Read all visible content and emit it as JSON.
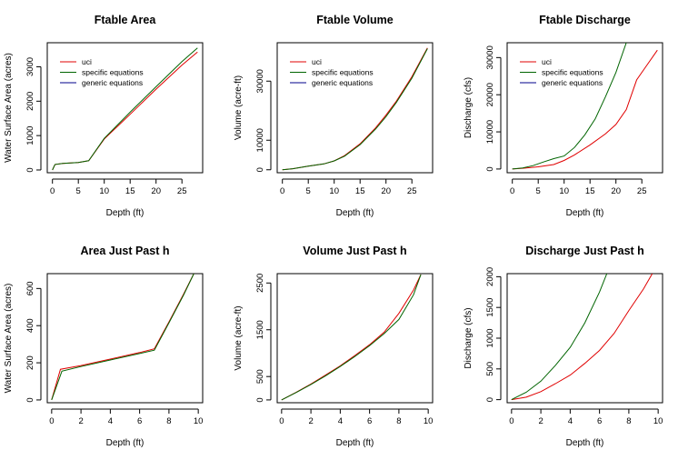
{
  "colors": {
    "uci": "#e00000",
    "specific": "#006400",
    "generic": "#00008b",
    "axis": "#000000",
    "background": "#ffffff"
  },
  "chart_data": [
    {
      "type": "line",
      "title": "Ftable Area",
      "xlabel": "Depth (ft)",
      "ylabel": "Water Surface Area (acres)",
      "xlim": [
        -1,
        29
      ],
      "ylim": [
        -80,
        3700
      ],
      "xticks": [
        0,
        5,
        10,
        15,
        20,
        25
      ],
      "yticks": [
        0,
        1000,
        2000,
        3000
      ],
      "legend": {
        "position": "top-left",
        "entries": [
          "uci",
          "specific equations",
          "generic equations"
        ]
      },
      "series": [
        {
          "name": "uci",
          "color_key": "uci",
          "x": [
            0,
            0.5,
            2,
            5,
            7,
            10,
            15,
            20,
            25,
            28
          ],
          "y": [
            0,
            160,
            190,
            220,
            270,
            900,
            1620,
            2350,
            3050,
            3430
          ]
        },
        {
          "name": "specific equations",
          "color_key": "specific",
          "x": [
            0,
            0.5,
            2,
            5,
            7,
            10,
            15,
            20,
            25,
            28
          ],
          "y": [
            0,
            160,
            190,
            220,
            270,
            920,
            1680,
            2420,
            3150,
            3550
          ]
        }
      ]
    },
    {
      "type": "line",
      "title": "Ftable Volume",
      "xlabel": "Depth (ft)",
      "ylabel": "Volume (acre-ft)",
      "xlim": [
        -1,
        29
      ],
      "ylim": [
        -1000,
        43000
      ],
      "xticks": [
        0,
        5,
        10,
        15,
        20,
        25
      ],
      "yticks": [
        0,
        10000,
        30000
      ],
      "legend": {
        "position": "top-left",
        "entries": [
          "uci",
          "specific equations",
          "generic equations"
        ]
      },
      "series": [
        {
          "name": "uci",
          "color_key": "uci",
          "x": [
            0,
            2,
            5,
            8,
            10,
            12,
            15,
            18,
            20,
            22,
            25,
            28
          ],
          "y": [
            0,
            350,
            1200,
            2000,
            3000,
            4800,
            8800,
            14200,
            18500,
            23200,
            31500,
            41200
          ]
        },
        {
          "name": "specific equations",
          "color_key": "specific",
          "x": [
            0,
            2,
            5,
            8,
            10,
            12,
            15,
            18,
            20,
            22,
            25,
            28
          ],
          "y": [
            0,
            350,
            1200,
            2000,
            3000,
            4600,
            8500,
            13800,
            18000,
            22800,
            31000,
            41000
          ]
        }
      ]
    },
    {
      "type": "line",
      "title": "Ftable Discharge",
      "xlabel": "Depth (ft)",
      "ylabel": "Discharge (cfs)",
      "xlim": [
        -1,
        29
      ],
      "ylim": [
        -1000,
        34000
      ],
      "xticks": [
        0,
        5,
        10,
        15,
        20,
        25
      ],
      "yticks": [
        0,
        10000,
        20000,
        30000
      ],
      "legend": {
        "position": "top-left",
        "entries": [
          "uci",
          "specific equations",
          "generic equations"
        ]
      },
      "series": [
        {
          "name": "uci",
          "color_key": "uci",
          "x": [
            0,
            2,
            5,
            8,
            10,
            12,
            15,
            18,
            20,
            22,
            24,
            26,
            28
          ],
          "y": [
            0,
            200,
            600,
            1200,
            2300,
            3800,
            6500,
            9500,
            12000,
            16000,
            24000,
            28000,
            32000
          ]
        },
        {
          "name": "specific equations",
          "color_key": "specific",
          "x": [
            0,
            2,
            4,
            6,
            8,
            10,
            12,
            14,
            16,
            18,
            20,
            22
          ],
          "y": [
            0,
            300,
            900,
            1900,
            2800,
            3500,
            5800,
            9200,
            13500,
            19500,
            26000,
            34000
          ]
        }
      ]
    },
    {
      "type": "line",
      "title": "Area Just Past h",
      "xlabel": "Depth (ft)",
      "ylabel": "Water Surface Area (acres)",
      "xlim": [
        -0.3,
        10.3
      ],
      "ylim": [
        -15,
        680
      ],
      "xticks": [
        0,
        2,
        4,
        6,
        8,
        10
      ],
      "yticks": [
        0,
        200,
        400,
        600
      ],
      "series": [
        {
          "name": "uci",
          "color_key": "uci",
          "x": [
            0,
            0.6,
            2,
            4,
            6,
            7,
            8,
            9,
            9.7
          ],
          "y": [
            0,
            165,
            185,
            220,
            255,
            275,
            420,
            570,
            680
          ]
        },
        {
          "name": "specific equations",
          "color_key": "specific",
          "x": [
            0,
            0.7,
            2,
            4,
            6,
            7,
            8,
            9,
            9.7
          ],
          "y": [
            0,
            155,
            180,
            215,
            250,
            268,
            415,
            565,
            680
          ]
        }
      ]
    },
    {
      "type": "line",
      "title": "Volume Just Past h",
      "xlabel": "Depth (ft)",
      "ylabel": "Volume (acre-ft)",
      "xlim": [
        -0.3,
        10.3
      ],
      "ylim": [
        -60,
        2700
      ],
      "xticks": [
        0,
        2,
        4,
        6,
        8,
        10
      ],
      "yticks": [
        0,
        500,
        1500,
        2500
      ],
      "series": [
        {
          "name": "uci",
          "color_key": "uci",
          "x": [
            0,
            1,
            2,
            3,
            4,
            5,
            6,
            7,
            8,
            9,
            9.5
          ],
          "y": [
            0,
            165,
            340,
            530,
            730,
            950,
            1180,
            1450,
            1850,
            2350,
            2680
          ]
        },
        {
          "name": "specific equations",
          "color_key": "specific",
          "x": [
            0,
            1,
            2,
            3,
            4,
            5,
            6,
            7,
            8,
            9,
            9.5
          ],
          "y": [
            0,
            160,
            330,
            515,
            715,
            930,
            1160,
            1420,
            1720,
            2250,
            2680
          ]
        }
      ]
    },
    {
      "type": "line",
      "title": "Discharge Just Past h",
      "xlabel": "Depth (ft)",
      "ylabel": "Discharge (cfs)",
      "xlim": [
        -0.3,
        10.3
      ],
      "ylim": [
        -50,
        2050
      ],
      "xticks": [
        0,
        2,
        4,
        6,
        8,
        10
      ],
      "yticks": [
        0,
        500,
        1000,
        1500,
        2000
      ],
      "series": [
        {
          "name": "uci",
          "color_key": "uci",
          "x": [
            0,
            1,
            2,
            3,
            4,
            5,
            6,
            7,
            8,
            9,
            9.6
          ],
          "y": [
            0,
            40,
            130,
            260,
            400,
            590,
            800,
            1080,
            1450,
            1800,
            2050
          ]
        },
        {
          "name": "specific equations",
          "color_key": "specific",
          "x": [
            0,
            1,
            2,
            3,
            4,
            5,
            6,
            6.5
          ],
          "y": [
            0,
            120,
            300,
            560,
            850,
            1250,
            1750,
            2050
          ]
        }
      ]
    }
  ]
}
